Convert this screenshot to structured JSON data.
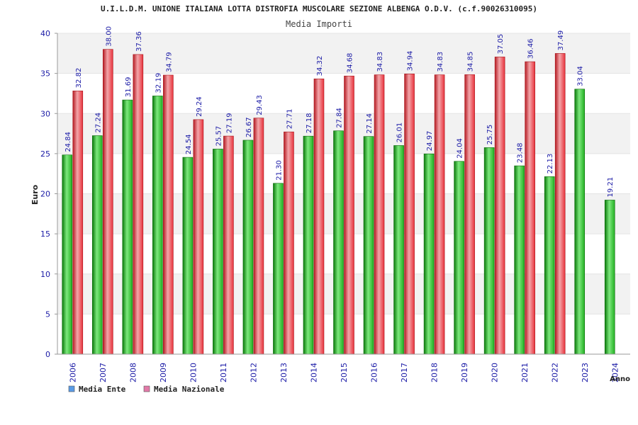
{
  "chart_data": {
    "type": "bar",
    "title": "U.I.L.D.M. UNIONE ITALIANA LOTTA DISTROFIA MUSCOLARE SEZIONE ALBENGA O.D.V. (c.f.90026310095)",
    "subtitle": "Media Importi",
    "xlabel": "Anno",
    "ylabel": "Euro",
    "ylim": [
      0,
      40
    ],
    "yticks": [
      0,
      5,
      10,
      15,
      20,
      25,
      30,
      35,
      40
    ],
    "grid": true,
    "legend_position": "bottom-left",
    "categories": [
      "2006",
      "2007",
      "2008",
      "2009",
      "2010",
      "2011",
      "2012",
      "2013",
      "2014",
      "2015",
      "2016",
      "2017",
      "2018",
      "2019",
      "2020",
      "2021",
      "2022",
      "2023",
      "2024"
    ],
    "series": [
      {
        "name": "Media Ente",
        "bar_color": "#22b022",
        "legend_color": "#5a9be6",
        "values": [
          24.84,
          27.24,
          31.69,
          32.19,
          24.54,
          25.57,
          26.67,
          21.3,
          27.18,
          27.84,
          27.14,
          26.01,
          24.97,
          24.04,
          25.75,
          23.48,
          22.13,
          33.04,
          19.21
        ],
        "labels": [
          "24.84",
          "27.24",
          "31.69",
          "32.19",
          "24.54",
          "25.57",
          "26.67",
          "21.30",
          "27.18",
          "27.84",
          "27.14",
          "26.01",
          "24.97",
          "24.04",
          "25.75",
          "23.48",
          "22.13",
          "33.04",
          "19.21"
        ]
      },
      {
        "name": "Media Nazionale",
        "bar_color": "#e8323c",
        "legend_color": "#e27aa8",
        "values": [
          32.82,
          38.0,
          37.36,
          34.79,
          29.24,
          27.19,
          29.43,
          27.71,
          34.32,
          34.68,
          34.83,
          34.94,
          34.83,
          34.85,
          37.05,
          36.46,
          37.49,
          null,
          null
        ],
        "labels": [
          "32.82",
          "38.00",
          "37.36",
          "34.79",
          "29.24",
          "27.19",
          "29.43",
          "27.71",
          "34.32",
          "34.68",
          "34.83",
          "34.94",
          "34.83",
          "34.85",
          "37.05",
          "36.46",
          "37.49",
          "",
          ""
        ]
      }
    ]
  }
}
